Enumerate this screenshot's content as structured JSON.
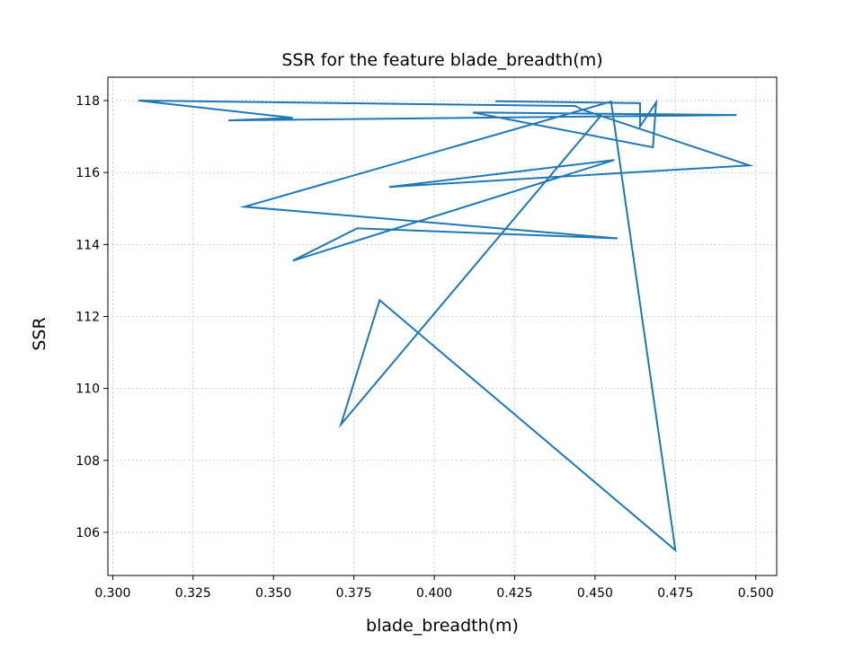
{
  "chart_data": {
    "type": "line",
    "title": "SSR for the feature blade_breadth(m)",
    "xlabel": "blade_breadth(m)",
    "ylabel": "SSR",
    "xlim": [
      0.2985,
      0.5065
    ],
    "ylim": [
      104.8,
      118.65
    ],
    "xticks": [
      0.3,
      0.325,
      0.35,
      0.375,
      0.4,
      0.425,
      0.45,
      0.475,
      0.5
    ],
    "xtick_labels": [
      "0.300",
      "0.325",
      "0.350",
      "0.375",
      "0.400",
      "0.425",
      "0.450",
      "0.475",
      "0.500"
    ],
    "yticks": [
      106,
      108,
      110,
      112,
      114,
      116,
      118
    ],
    "ytick_labels": [
      "106",
      "108",
      "110",
      "112",
      "114",
      "116",
      "118"
    ],
    "grid": true,
    "line_color": "#1f77b4",
    "series": [
      {
        "x": [
          0.419,
          0.464,
          0.464,
          0.469,
          0.468,
          0.412,
          0.494,
          0.336,
          0.356,
          0.308,
          0.444,
          0.446,
          0.498,
          0.386,
          0.456,
          0.356,
          0.376,
          0.457,
          0.341,
          0.455,
          0.475,
          0.383,
          0.371,
          0.452
        ],
        "y": [
          117.98,
          117.93,
          117.28,
          117.95,
          116.7,
          117.67,
          117.6,
          117.45,
          117.52,
          118.0,
          117.85,
          117.75,
          116.2,
          115.6,
          116.35,
          113.55,
          114.45,
          114.17,
          115.05,
          117.97,
          105.5,
          112.45,
          109.0,
          117.6
        ]
      }
    ]
  }
}
